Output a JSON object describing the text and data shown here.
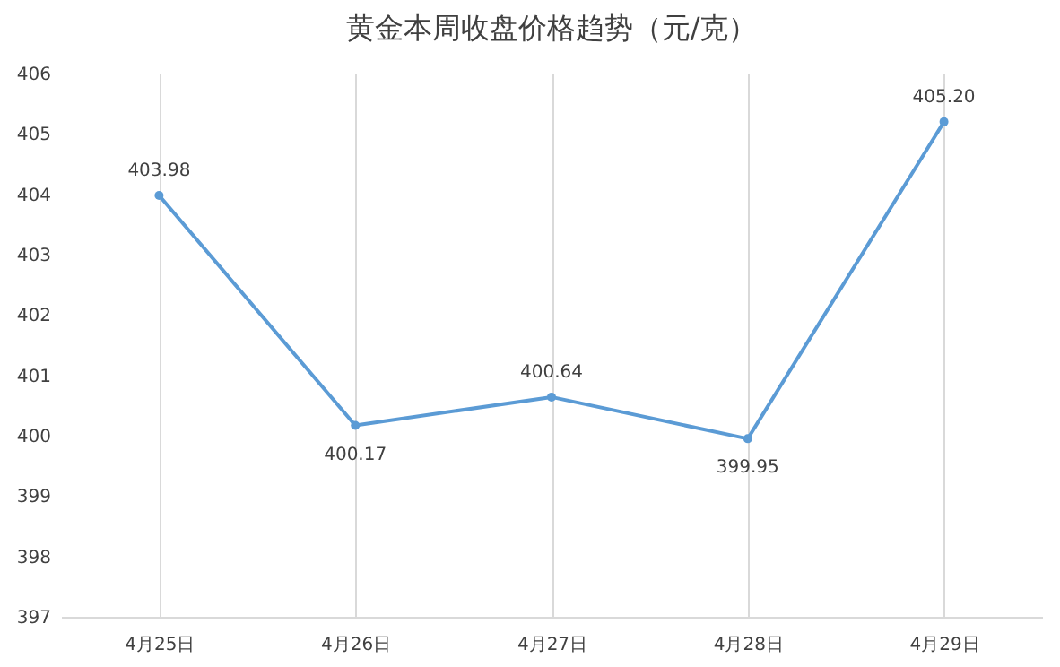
{
  "chart_data": {
    "type": "line",
    "title": "黄金本周收盘价格趋势（元/克）",
    "categories": [
      "4月25日",
      "4月26日",
      "4月27日",
      "4月28日",
      "4月29日"
    ],
    "series": [
      {
        "color": "#5b9bd5",
        "values": [
          403.98,
          400.17,
          400.64,
          399.95,
          405.2
        ],
        "value_labels": [
          "403.98",
          "400.17",
          "400.64",
          "399.95",
          "405.20"
        ]
      }
    ],
    "ylim": [
      397,
      406
    ],
    "yticks": [
      397,
      398,
      399,
      400,
      401,
      402,
      403,
      404,
      405,
      406
    ],
    "grid": "x",
    "marker": "circle",
    "line_style": "solid"
  }
}
